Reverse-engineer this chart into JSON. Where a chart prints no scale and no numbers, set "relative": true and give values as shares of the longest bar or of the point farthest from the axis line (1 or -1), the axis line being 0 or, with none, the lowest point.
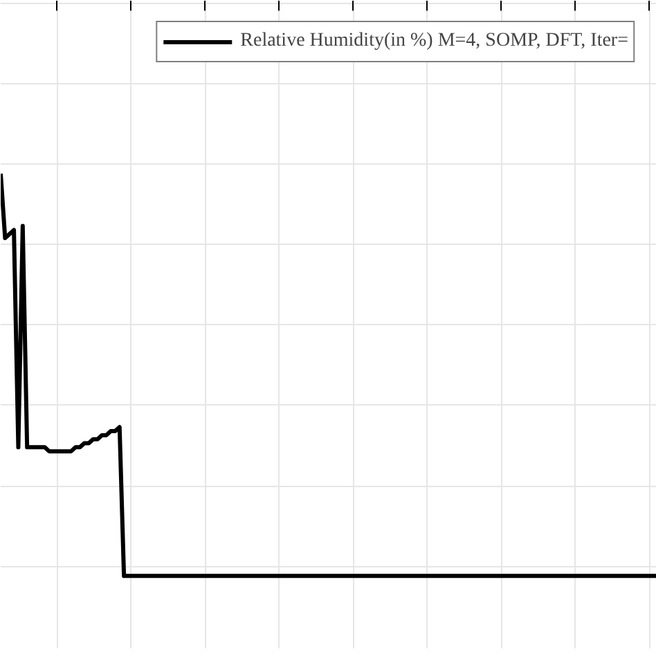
{
  "chart_data": {
    "type": "line",
    "relative": true,
    "categories": [
      null,
      null,
      null,
      null,
      null,
      null,
      null,
      null,
      null,
      null,
      null,
      null,
      null,
      null,
      null,
      null,
      null,
      null,
      null,
      null,
      null,
      null,
      null,
      null,
      null,
      null,
      null,
      null,
      null,
      null,
      null,
      null,
      null,
      null,
      null,
      null,
      null,
      null,
      null,
      null,
      null,
      null,
      null,
      null,
      null,
      null,
      null,
      null,
      null,
      null,
      null,
      null,
      null,
      null,
      null,
      null,
      null,
      null,
      null,
      null,
      null,
      null,
      null,
      null,
      null,
      null,
      null,
      null,
      null,
      null,
      null,
      null,
      null,
      null,
      null,
      null,
      null,
      null,
      null,
      null,
      null,
      null,
      null,
      null,
      null,
      null,
      null,
      null,
      null,
      null,
      null,
      null,
      null,
      null,
      null,
      null,
      null,
      null,
      null,
      null,
      null,
      null,
      null,
      null,
      null,
      null,
      null,
      null,
      null,
      null,
      null,
      null,
      null,
      null,
      null,
      null,
      null,
      null,
      null,
      null,
      null,
      null,
      null,
      null,
      null,
      null,
      null,
      null,
      null,
      null,
      null,
      null,
      null,
      null,
      null,
      null,
      null,
      null,
      null,
      null,
      null,
      null,
      null,
      null,
      null,
      null,
      null,
      null,
      null,
      null
    ],
    "series": [
      {
        "name": "Relative Humidity(in %) M=4, SOMP, DFT, Iter=",
        "color": "#000000",
        "values": [
          1.0,
          0.84,
          0.85,
          0.86,
          0.32,
          0.87,
          0.32,
          0.32,
          0.32,
          0.32,
          0.32,
          0.31,
          0.31,
          0.31,
          0.31,
          0.31,
          0.31,
          0.32,
          0.32,
          0.33,
          0.33,
          0.34,
          0.34,
          0.35,
          0.35,
          0.36,
          0.36,
          0.37,
          0,
          0,
          0,
          0,
          0,
          0,
          0,
          0,
          0,
          0,
          0,
          0,
          0,
          0,
          0,
          0,
          0,
          0,
          0,
          0,
          0,
          0,
          0,
          0,
          0,
          0,
          0,
          0,
          0,
          0,
          0,
          0,
          0,
          0,
          0,
          0,
          0,
          0,
          0,
          0,
          0,
          0,
          0,
          0,
          0,
          0,
          0,
          0,
          0,
          0,
          0,
          0,
          0,
          0,
          0,
          0,
          0,
          0,
          0,
          0,
          0,
          0,
          0,
          0,
          0,
          0,
          0,
          0,
          0,
          0,
          0,
          0,
          0,
          0,
          0,
          0,
          0,
          0,
          0,
          0,
          0,
          0,
          0,
          0,
          0,
          0,
          0,
          0,
          0,
          0,
          0,
          0,
          0,
          0,
          0,
          0,
          0,
          0,
          0,
          0,
          0,
          0,
          0,
          0,
          0,
          0,
          0,
          0,
          0,
          0,
          0,
          0,
          0,
          0,
          0,
          0,
          0,
          0,
          0,
          0,
          0,
          0
        ]
      }
    ],
    "grid": true,
    "legend": "top right",
    "line_style": "solid",
    "marker": "none"
  }
}
